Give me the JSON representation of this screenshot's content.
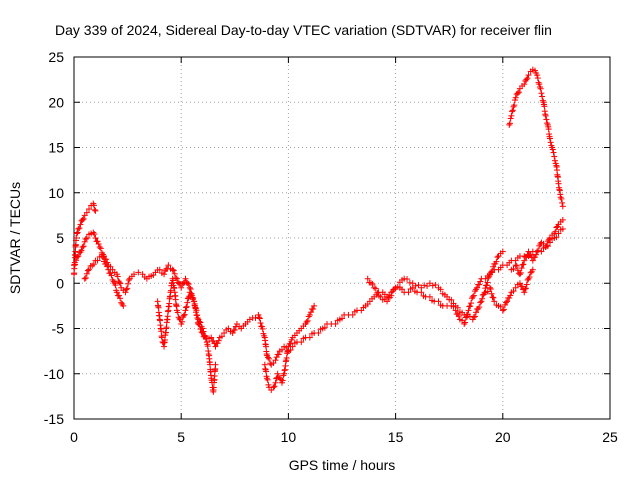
{
  "chart_data": {
    "type": "scatter",
    "title": "Day 339 of 2024, Sidereal Day-to-day VTEC variation (SDTVAR) for receiver flin",
    "xlabel": "GPS time / hours",
    "ylabel": "SDTVAR / TECUs",
    "xlim": [
      0,
      25
    ],
    "ylim": [
      -15,
      25
    ],
    "xticks": [
      0,
      5,
      10,
      15,
      20,
      25
    ],
    "yticks": [
      -15,
      -10,
      -5,
      0,
      5,
      10,
      15,
      20,
      25
    ],
    "grid": true,
    "marker": "plus",
    "color": "#ff0000",
    "series": [
      {
        "x": [
          0.0,
          0.2,
          0.4,
          0.6,
          0.8,
          0.9,
          1.0,
          1.2,
          1.4,
          1.6,
          1.8,
          2.0,
          2.2,
          2.4,
          2.6,
          2.8,
          3.0,
          3.2,
          3.4,
          3.6,
          3.8,
          4.0,
          4.2,
          4.4,
          4.6,
          4.8,
          5.0,
          5.2,
          5.4,
          5.6,
          5.8,
          6.0,
          6.2,
          6.4,
          6.6,
          6.8,
          7.0,
          7.2,
          7.4,
          7.6,
          7.8,
          8.0,
          8.2,
          8.6,
          8.9,
          9.0,
          9.2,
          9.4,
          9.6,
          9.8,
          10.0,
          10.2,
          10.4,
          10.6,
          10.8,
          11.0,
          11.2,
          11.4,
          11.6,
          11.8,
          12.0,
          12.2,
          12.4,
          12.6,
          12.8,
          13.0,
          13.2,
          13.4,
          13.6,
          13.8,
          14.0,
          14.2,
          14.4,
          14.6,
          14.8,
          15.0,
          15.2,
          15.4,
          15.6,
          15.8,
          16.0,
          16.2,
          16.4,
          16.6,
          16.8,
          17.0,
          17.2,
          17.4,
          17.6,
          17.8,
          18.0,
          18.2,
          18.4,
          18.6,
          18.8,
          19.0,
          19.2,
          19.4,
          19.6,
          19.8,
          20.0,
          20.2,
          20.4,
          20.6,
          20.8,
          21.0,
          21.2,
          21.4,
          21.6,
          21.8,
          22.0,
          22.2,
          22.4,
          22.6,
          22.8
        ],
        "y": [
          2.0,
          3.0,
          4.0,
          5.0,
          5.5,
          5.6,
          5.0,
          4.0,
          3.0,
          2.0,
          1.5,
          1.0,
          -0.5,
          -1.0,
          0.5,
          1.0,
          1.2,
          1.0,
          0.5,
          0.8,
          1.2,
          1.5,
          1.0,
          2.0,
          1.5,
          0.5,
          -0.5,
          0.5,
          -0.5,
          -2.0,
          -4.5,
          -5.5,
          -6.5,
          -6.0,
          -7.0,
          -6.0,
          -5.5,
          -5.0,
          -5.5,
          -4.5,
          -5.0,
          -4.5,
          -4.0,
          -3.5,
          -6.0,
          -8.0,
          -9.0,
          -8.5,
          -7.5,
          -7.0,
          -7.5,
          -7.0,
          -6.5,
          -6.5,
          -6.0,
          -6.0,
          -5.5,
          -5.5,
          -5.0,
          -4.5,
          -4.5,
          -4.5,
          -4.0,
          -3.5,
          -3.5,
          -3.5,
          -3.0,
          -3.0,
          -2.5,
          -2.0,
          -1.5,
          -1.0,
          -1.0,
          -1.5,
          -1.0,
          -0.5,
          -0.5,
          -1.0,
          -1.0,
          -0.5,
          -1.0,
          -1.0,
          -1.5,
          -1.5,
          -2.0,
          -2.0,
          -2.5,
          -2.5,
          -2.5,
          -3.0,
          -4.0,
          -4.5,
          -3.0,
          -1.5,
          -0.5,
          0.5,
          0.5,
          1.0,
          1.5,
          1.5,
          2.0,
          2.0,
          2.5,
          2.5,
          3.0,
          3.0,
          3.0,
          3.5,
          3.5,
          3.5,
          4.0,
          4.5,
          5.0,
          5.5,
          6.0
        ]
      },
      {
        "x": [
          0.0,
          0.1,
          0.2,
          0.3,
          0.4,
          0.5,
          0.6,
          0.7,
          0.8,
          0.9,
          1.0
        ],
        "y": [
          1.0,
          5.0,
          6.0,
          6.5,
          7.0,
          7.5,
          7.8,
          8.2,
          8.6,
          8.8,
          8.0
        ]
      },
      {
        "x": [
          0.5,
          0.7,
          1.0,
          1.3,
          1.6,
          1.9,
          2.0,
          2.3
        ],
        "y": [
          0.5,
          1.5,
          2.5,
          3.0,
          1.5,
          0.0,
          -1.0,
          -2.5
        ]
      },
      {
        "x": [
          3.9,
          4.0,
          4.1,
          4.2,
          4.3,
          4.4,
          4.5,
          4.6,
          4.7,
          4.8,
          5.0,
          5.2,
          5.4,
          5.6,
          5.8,
          6.0,
          6.2,
          6.3,
          6.4,
          6.5,
          6.6
        ],
        "y": [
          -2.0,
          -4.0,
          -6.0,
          -7.0,
          -5.0,
          -3.0,
          -1.0,
          0.5,
          -1.0,
          -3.0,
          -4.5,
          -3.0,
          -1.0,
          -2.0,
          -4.0,
          -5.0,
          -6.5,
          -8.0,
          -10.5,
          -12.0,
          -9.0
        ]
      },
      {
        "x": [
          8.9,
          9.0,
          9.1,
          9.2,
          9.3,
          9.4,
          9.5,
          9.6,
          9.7,
          9.8,
          9.9,
          10.0,
          10.2,
          10.4,
          10.6,
          10.8,
          11.0,
          11.2
        ],
        "y": [
          -9.0,
          -10.5,
          -11.5,
          -11.8,
          -11.5,
          -11.0,
          -10.0,
          -10.5,
          -11.0,
          -10.0,
          -8.5,
          -7.0,
          -6.0,
          -5.5,
          -5.0,
          -4.5,
          -3.5,
          -2.5
        ]
      },
      {
        "x": [
          13.7,
          14.0,
          14.3,
          14.6,
          15.0,
          15.4,
          15.8,
          16.2,
          16.6,
          17.0,
          17.4,
          17.8,
          18.2,
          18.6,
          19.0,
          19.4,
          19.8,
          20.0
        ],
        "y": [
          0.5,
          -0.5,
          -1.5,
          -2.0,
          -0.5,
          0.5,
          0.0,
          -0.5,
          0.0,
          -0.5,
          -1.5,
          -2.5,
          -3.5,
          -4.0,
          -2.0,
          1.0,
          3.0,
          3.5
        ]
      },
      {
        "x": [
          19.2,
          19.4,
          19.6,
          19.8,
          20.0,
          20.2,
          20.4,
          20.6,
          20.8,
          21.0,
          21.2,
          21.4
        ],
        "y": [
          -1.0,
          -0.5,
          -2.0,
          -2.5,
          -3.0,
          -2.0,
          -1.0,
          -0.5,
          0.0,
          -1.0,
          0.5,
          1.5
        ]
      },
      {
        "x": [
          20.4,
          20.6,
          20.8,
          21.0,
          21.2,
          21.4,
          21.6,
          21.8,
          22.0,
          22.2,
          22.4,
          22.6,
          22.8
        ],
        "y": [
          1.5,
          2.0,
          1.0,
          2.5,
          3.5,
          2.5,
          3.5,
          4.5,
          4.0,
          5.0,
          5.5,
          6.5,
          7.0
        ]
      },
      {
        "x": [
          20.3,
          20.4,
          20.5,
          20.6,
          20.7,
          20.8,
          20.9,
          21.0,
          21.1,
          21.2,
          21.3,
          21.4,
          21.5,
          21.6,
          21.7,
          21.8,
          21.9,
          22.0,
          22.1,
          22.2,
          22.3,
          22.4,
          22.5,
          22.6,
          22.7,
          22.8
        ],
        "y": [
          17.5,
          18.5,
          19.5,
          20.5,
          21.0,
          21.5,
          21.8,
          22.0,
          22.5,
          23.0,
          23.4,
          23.6,
          23.5,
          23.0,
          22.0,
          21.0,
          20.0,
          18.5,
          17.5,
          16.0,
          15.0,
          14.0,
          13.0,
          11.0,
          9.5,
          8.5
        ]
      }
    ]
  }
}
